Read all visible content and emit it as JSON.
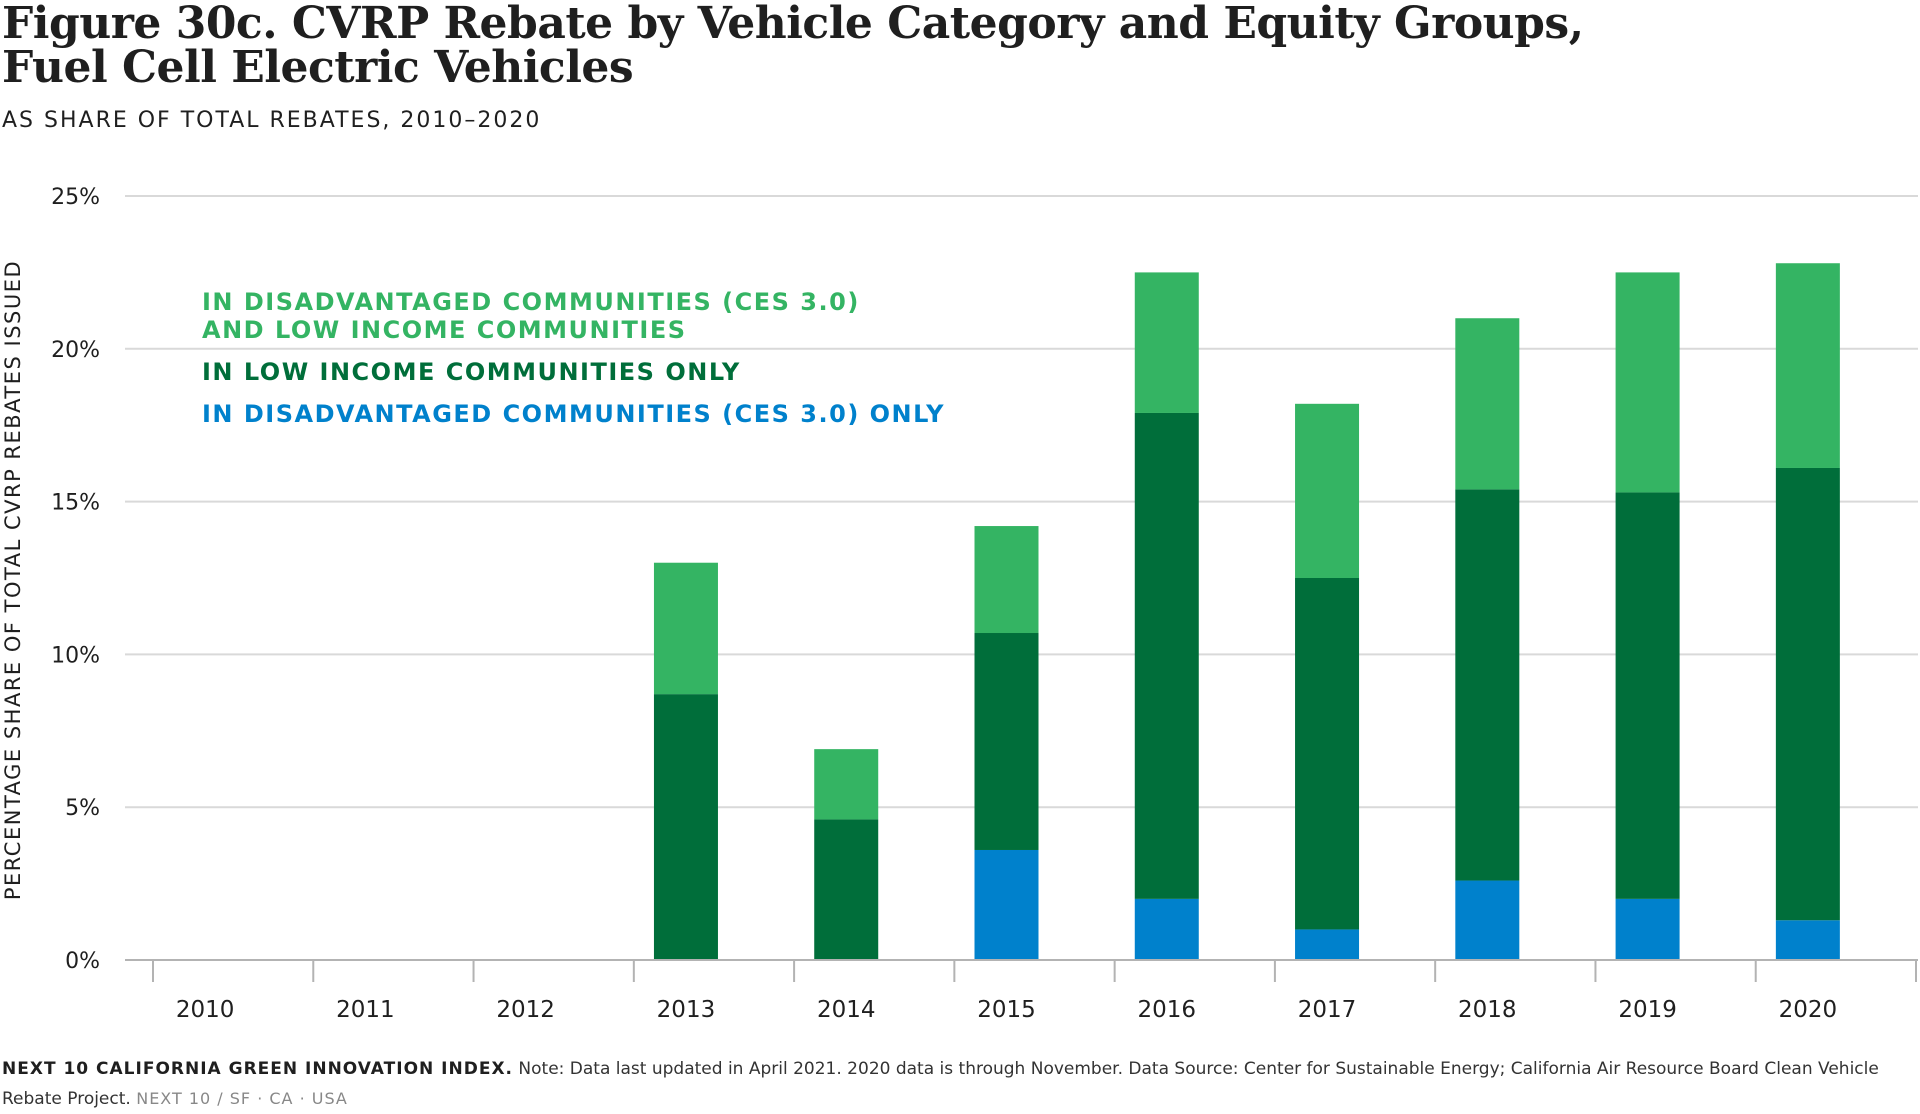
{
  "header": {
    "title_line1": "Figure 30c. CVRP Rebate by Vehicle Category and Equity Groups,",
    "title_line2": "Fuel Cell Electric Vehicles",
    "subtitle": "AS SHARE OF TOTAL REBATES, 2010–2020"
  },
  "footer": {
    "brand": "NEXT 10 CALIFORNIA GREEN INNOVATION INDEX.",
    "note": "Note: Data last updated in April 2021. 2020 data is through November. Data Source: Center for Sustainable Energy; California Air Resource Board Clean Vehicle Rebate Project.",
    "tag": "NEXT 10  /  SF · CA · USA"
  },
  "colors": {
    "dac_and_low_income": "#34b463",
    "low_income_only": "#006e3a",
    "dac_only": "#0081cc",
    "grid": "#d9d9d9",
    "axis": "#b3b3b3"
  },
  "chart_data": {
    "type": "bar",
    "stacked": true,
    "ylabel": "PERCENTAGE SHARE OF TOTAL CVRP REBATES ISSUED",
    "xlabel": "",
    "ylim": [
      0,
      25
    ],
    "yticks": [
      0,
      5,
      10,
      15,
      20,
      25
    ],
    "ytick_labels": [
      "0%",
      "5%",
      "10%",
      "15%",
      "20%",
      "25%"
    ],
    "grid": true,
    "legend_position": "top-left",
    "categories": [
      "2010",
      "2011",
      "2012",
      "2013",
      "2014",
      "2015",
      "2016",
      "2017",
      "2018",
      "2019",
      "2020"
    ],
    "series": [
      {
        "name": "IN DISADVANTAGED COMMUNITIES (CES 3.0) ONLY",
        "color_key": "dac_only",
        "values": [
          0,
          0,
          0,
          0,
          0,
          3.6,
          2.0,
          1.0,
          2.6,
          2.0,
          1.3
        ]
      },
      {
        "name": "IN LOW INCOME COMMUNITIES ONLY",
        "color_key": "low_income_only",
        "values": [
          0,
          0,
          0,
          8.7,
          4.6,
          7.1,
          15.9,
          11.5,
          12.8,
          13.3,
          14.8
        ]
      },
      {
        "name": "IN DISADVANTAGED COMMUNITIES (CES 3.0) AND LOW INCOME COMMUNITIES",
        "name_line1": "IN DISADVANTAGED COMMUNITIES (CES 3.0)",
        "name_line2": "AND LOW INCOME COMMUNITIES",
        "color_key": "dac_and_low_income",
        "values": [
          0,
          0,
          0,
          4.3,
          2.3,
          3.5,
          4.6,
          5.7,
          5.6,
          7.2,
          6.7
        ]
      }
    ]
  }
}
